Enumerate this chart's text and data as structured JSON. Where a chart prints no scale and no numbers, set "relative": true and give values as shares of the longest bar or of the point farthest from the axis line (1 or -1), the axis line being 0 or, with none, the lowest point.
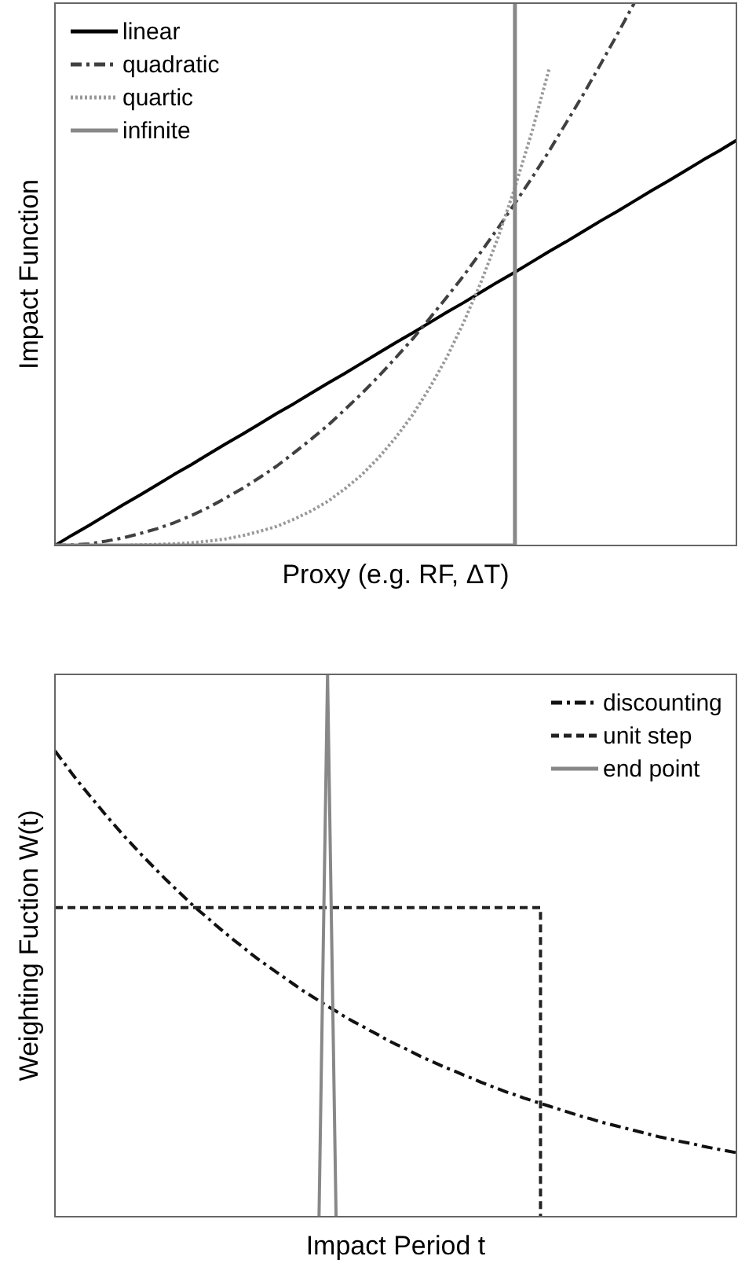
{
  "chart_data": [
    {
      "type": "line",
      "relative": true,
      "xlabel": "Proxy (e.g. RF, ΔT)",
      "ylabel": "Impact Function",
      "legend": "top left",
      "categories": [
        null,
        null,
        null,
        null,
        null,
        null,
        null,
        null,
        null,
        null,
        null,
        null,
        null,
        null,
        null,
        null,
        null,
        null,
        null,
        null,
        null,
        null,
        null,
        null,
        null,
        null,
        null,
        null,
        null,
        null,
        null,
        null,
        null,
        null,
        null,
        null,
        null,
        null,
        null,
        null,
        null
      ],
      "series": [
        {
          "name": "linear",
          "color": "#000000",
          "line_style": "solid",
          "values": [
            0,
            0.019,
            0.037,
            0.056,
            0.075,
            0.093,
            0.112,
            0.131,
            0.149,
            0.168,
            0.187,
            0.205,
            0.224,
            0.243,
            0.261,
            0.28,
            0.299,
            0.317,
            0.336,
            0.355,
            0.374,
            0.392,
            0.411,
            0.43,
            0.448,
            0.467,
            0.486,
            0.504,
            0.523,
            0.542,
            0.56,
            0.579,
            0.598,
            0.616,
            0.635,
            0.654,
            0.672,
            0.691,
            0.71,
            0.728,
            0.747
          ]
        },
        {
          "name": "quadratic",
          "color": "#404040",
          "line_style": "dashdot",
          "values": [
            0,
            0.001,
            0.003,
            0.008,
            0.014,
            0.022,
            0.031,
            0.042,
            0.055,
            0.07,
            0.087,
            0.105,
            0.125,
            0.146,
            0.17,
            0.195,
            0.221,
            0.25,
            0.28,
            0.312,
            0.346,
            0.381,
            0.419,
            0.458,
            0.498,
            0.541,
            0.585,
            0.631,
            0.678,
            0.727,
            0.779,
            0.831,
            0.886,
            0.942,
            1,
            null,
            null,
            null,
            null,
            null,
            null
          ]
        },
        {
          "name": "quartic",
          "color": "#999999",
          "line_style": "dotted",
          "values": [
            0,
            0,
            0,
            0,
            0,
            0.001,
            0.002,
            0.003,
            0.005,
            0.008,
            0.012,
            0.018,
            0.026,
            0.035,
            0.048,
            0.063,
            0.081,
            0.104,
            0.13,
            0.162,
            0.199,
            0.241,
            0.291,
            0.347,
            0.412,
            0.485,
            0.567,
            0.66,
            0.763,
            0.878,
            null,
            null,
            null,
            null,
            null,
            null,
            null,
            null,
            null,
            null,
            null
          ]
        },
        {
          "name": "infinite",
          "type": "step",
          "color": "#888888",
          "line_style": "solid",
          "values": [
            0,
            0,
            0,
            0,
            0,
            0,
            0,
            0,
            0,
            0,
            0,
            0,
            0,
            0,
            0,
            0,
            0,
            0,
            0,
            0,
            0,
            0,
            0,
            0,
            0,
            0,
            0,
            1,
            null,
            null,
            null,
            null,
            null,
            null,
            null,
            null,
            null,
            null,
            null,
            null,
            null
          ]
        }
      ]
    },
    {
      "type": "line",
      "relative": true,
      "xlabel": "Impact Period t",
      "ylabel": "Weighting Fuction W(t)",
      "legend": "top right",
      "categories": [
        null,
        null,
        null,
        null,
        null,
        null,
        null,
        null,
        null,
        null,
        null,
        null,
        null,
        null,
        null,
        null,
        null,
        null,
        null,
        null,
        null,
        null,
        null,
        null,
        null,
        null,
        null,
        null,
        null,
        null,
        null,
        null,
        null,
        null,
        null,
        null,
        null,
        null,
        null,
        null,
        null,
        null,
        null,
        null,
        null,
        null,
        null,
        null,
        null,
        null,
        null,
        null,
        null,
        null,
        null,
        null,
        null,
        null,
        null,
        null,
        null,
        null,
        null,
        null,
        null,
        null,
        null,
        null,
        null,
        null,
        null,
        null,
        null,
        null,
        null,
        null,
        null,
        null,
        null,
        null,
        null
      ],
      "series": [
        {
          "name": "discounting",
          "color": "#111111",
          "line_style": "dashdot",
          "values": [
            0.859,
            0.838,
            0.817,
            0.797,
            0.778,
            0.759,
            0.74,
            0.722,
            0.704,
            0.687,
            0.67,
            0.654,
            0.638,
            0.622,
            0.607,
            0.592,
            0.577,
            0.563,
            0.55,
            0.536,
            0.523,
            0.51,
            0.498,
            0.485,
            0.473,
            0.462,
            0.451,
            0.44,
            0.429,
            0.418,
            0.408,
            0.398,
            0.388,
            0.379,
            0.369,
            0.36,
            0.352,
            0.343,
            0.335,
            0.326,
            0.318,
            0.311,
            0.303,
            0.295,
            0.288,
            0.281,
            0.274,
            0.268,
            0.261,
            0.255,
            0.248,
            0.242,
            0.236,
            0.23,
            0.225,
            0.219,
            0.214,
            0.209,
            0.204,
            0.199,
            0.194,
            0.189,
            0.184,
            0.18,
            0.175,
            0.171,
            0.167,
            0.163,
            0.159,
            0.155,
            0.151,
            0.147,
            0.144,
            0.14,
            0.137,
            0.134,
            0.13,
            0.127,
            0.124,
            0.121,
            0.118
          ]
        },
        {
          "name": "unit step",
          "type": "step",
          "color": "#222222",
          "line_style": "dashed",
          "values": [
            0.57,
            0.57,
            0.57,
            0.57,
            0.57,
            0.57,
            0.57,
            0.57,
            0.57,
            0.57,
            0.57,
            0.57,
            0.57,
            0.57,
            0.57,
            0.57,
            0.57,
            0.57,
            0.57,
            0.57,
            0.57,
            0.57,
            0.57,
            0.57,
            0.57,
            0.57,
            0.57,
            0.57,
            0.57,
            0.57,
            0.57,
            0.57,
            0.57,
            0.57,
            0.57,
            0.57,
            0.57,
            0.57,
            0.57,
            0.57,
            0.57,
            0.57,
            0.57,
            0.57,
            0.57,
            0.57,
            0.57,
            0.57,
            0.57,
            0.57,
            0.57,
            0.57,
            0.57,
            0.57,
            0.57,
            0.57,
            0.57,
            0,
            null,
            null,
            null,
            null,
            null,
            null,
            null,
            null,
            null,
            null,
            null,
            null,
            null,
            null,
            null,
            null,
            null,
            null,
            null,
            null,
            null,
            null,
            null
          ]
        },
        {
          "name": "end point",
          "color": "#888888",
          "line_style": "solid",
          "values": [
            null,
            null,
            null,
            null,
            null,
            null,
            null,
            null,
            null,
            null,
            null,
            null,
            null,
            null,
            null,
            null,
            null,
            null,
            null,
            null,
            null,
            null,
            null,
            null,
            null,
            null,
            null,
            null,
            null,
            null,
            null,
            0,
            1,
            0,
            null,
            null,
            null,
            null,
            null,
            null,
            null,
            null,
            null,
            null,
            null,
            null,
            null,
            null,
            null,
            null,
            null,
            null,
            null,
            null,
            null,
            null,
            null,
            null,
            null,
            null,
            null,
            null,
            null,
            null,
            null,
            null,
            null,
            null,
            null,
            null,
            null,
            null,
            null,
            null,
            null,
            null,
            null,
            null,
            null,
            null,
            null
          ]
        }
      ]
    }
  ]
}
